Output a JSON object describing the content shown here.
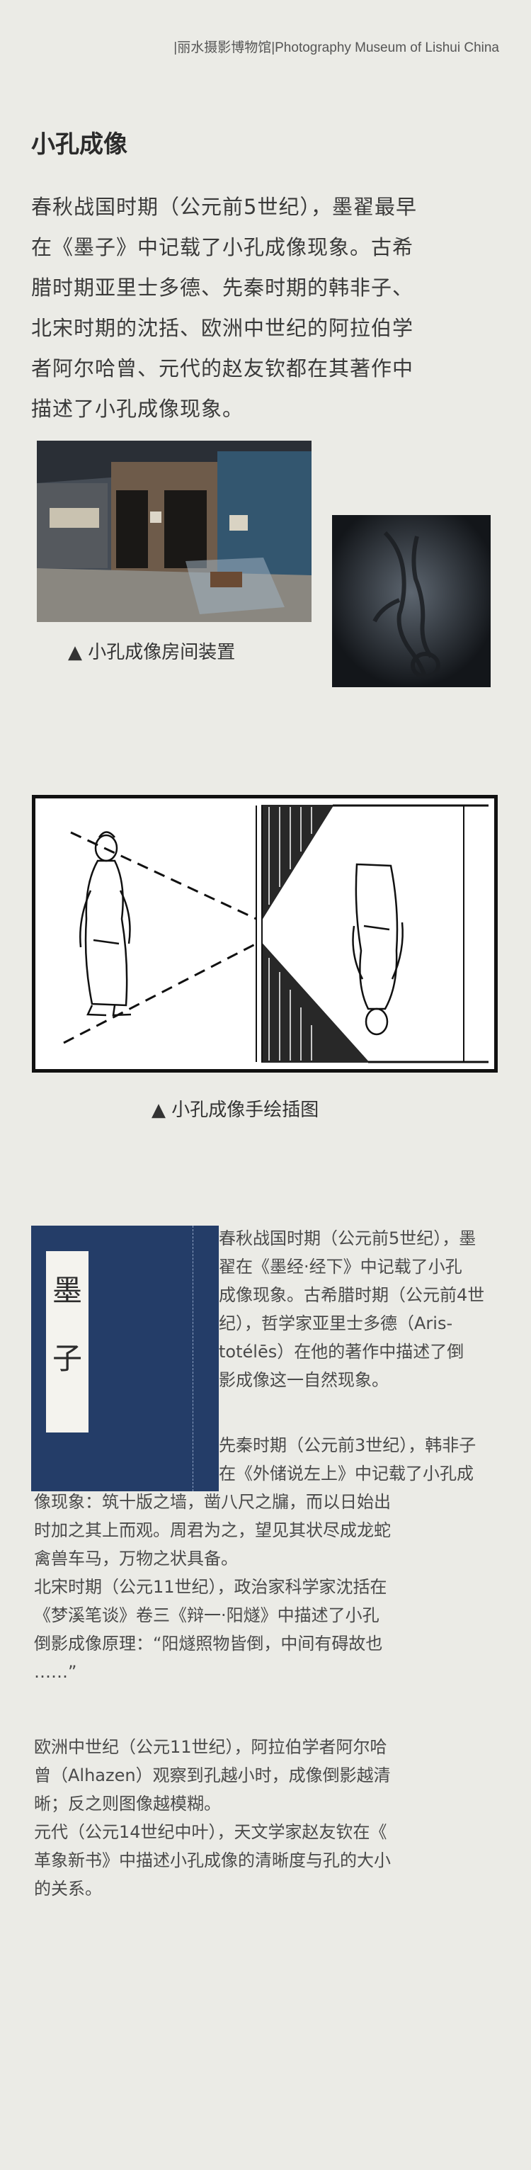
{
  "header": {
    "museum": "|丽水摄影博物馆|Photography Museum of Lishui China"
  },
  "title": "小孔成像",
  "intro": {
    "lines": [
      "春秋战国时期（公元前5世纪），墨翟最早",
      "在《墨子》中记载了小孔成像现象。古希",
      "腊时期亚里士多德、先秦时期的韩非子、",
      "北宋时期的沈括、欧洲中世纪的阿拉伯学",
      "者阿尔哈曾、元代的赵友钦都在其著作中",
      "描述了小孔成像现象。"
    ]
  },
  "captions": {
    "bullet": "▲",
    "room": "小孔成像房间装置",
    "drawing": "小孔成像手绘插图"
  },
  "book": {
    "chars": [
      "墨",
      "子"
    ]
  },
  "paragraphs": {
    "p1": [
      "春秋战国时期（公元前5世纪），墨",
      "翟在《墨经·经下》中记载了小孔",
      "成像现象。古希腊时期（公元前4世",
      "纪），哲学家亚里士多德（Aris-",
      "totélēs）在他的著作中描述了倒",
      "影成像这一自然现象。"
    ],
    "p2_side": [
      "先秦时期（公元前3世纪），韩非子",
      "在《外储说左上》中记载了小孔成"
    ],
    "p2_full": [
      "像现象：筑十版之墙，凿八尺之牖，而以日始出",
      "时加之其上而观。周君为之，望见其状尽成龙蛇",
      "禽兽车马，万物之状具备。"
    ],
    "p3": [
      "北宋时期（公元11世纪），政治家科学家沈括在",
      "《梦溪笔谈》卷三《辩一·阳燧》中描述了小孔",
      "倒影成像原理：“阳燧照物皆倒，中间有碍故也",
      "……”"
    ],
    "p4": [
      "欧洲中世纪（公元11世纪），阿拉伯学者阿尔哈",
      "曾（Alhazen）观察到孔越小时，成像倒影越清",
      "晰；反之则图像越模糊。"
    ],
    "p5": [
      "元代（公元14世纪中叶），天文学家赵友钦在《",
      "革象新书》中描述小孔成像的清晰度与孔的大小",
      "的关系。"
    ]
  }
}
